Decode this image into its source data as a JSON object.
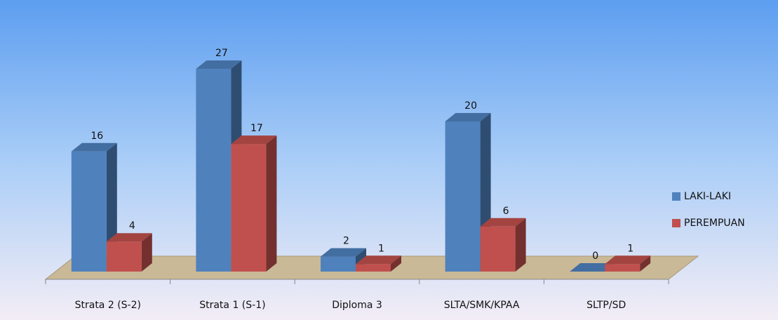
{
  "chart_data": {
    "type": "bar3d",
    "categories": [
      "Strata 2 (S-2)",
      "Strata 1 (S-1)",
      "Diploma 3",
      "SLTA/SMK/KPAA",
      "SLTP/SD"
    ],
    "series": [
      {
        "name": "LAKI-LAKI",
        "color": "#4f81bd",
        "values": [
          16,
          27,
          2,
          20,
          0
        ]
      },
      {
        "name": "PEREMPUAN",
        "color": "#c0504d",
        "values": [
          4,
          17,
          1,
          6,
          1
        ]
      }
    ],
    "legend": "right"
  }
}
